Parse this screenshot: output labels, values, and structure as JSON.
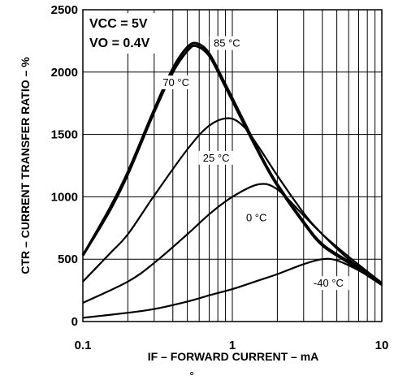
{
  "chart_data": {
    "type": "line",
    "x_scale": "log",
    "y_scale": "linear",
    "xlim": [
      0.1,
      10
    ],
    "ylim": [
      0,
      2500
    ],
    "grid": true,
    "xlabel": "IF – FORWARD CURRENT – mA",
    "ylabel": "CTR – CURRENT TRANSFER RATIO – %",
    "x_ticks": [
      "0.1",
      "1",
      "10"
    ],
    "y_ticks": [
      "0",
      "500",
      "1000",
      "1500",
      "2000",
      "2500"
    ],
    "conditions": [
      "VCC = 5V",
      "VO = 0.4V"
    ],
    "series": [
      {
        "name": "85 °C",
        "x": [
          0.1,
          0.15,
          0.2,
          0.3,
          0.4,
          0.5,
          0.58,
          0.7,
          0.9,
          1.2,
          1.6,
          2,
          3,
          4,
          6,
          10
        ],
        "values": [
          530,
          900,
          1200,
          1700,
          2030,
          2200,
          2230,
          2150,
          1900,
          1600,
          1300,
          1100,
          800,
          620,
          480,
          300
        ]
      },
      {
        "name": "70 °C",
        "x": [
          0.1,
          0.15,
          0.2,
          0.3,
          0.4,
          0.5,
          0.57,
          0.7,
          0.9,
          1.2,
          1.6,
          2,
          3,
          4,
          6,
          10
        ],
        "values": [
          530,
          880,
          1180,
          1680,
          2000,
          2170,
          2210,
          2130,
          1880,
          1580,
          1290,
          1090,
          790,
          610,
          470,
          295
        ]
      },
      {
        "name": "25 °C",
        "x": [
          0.1,
          0.15,
          0.2,
          0.3,
          0.5,
          0.7,
          0.95,
          1.2,
          1.5,
          2,
          3,
          4,
          6,
          10
        ],
        "values": [
          320,
          540,
          700,
          1010,
          1380,
          1570,
          1630,
          1560,
          1400,
          1170,
          870,
          700,
          500,
          310
        ]
      },
      {
        "name": "0 °C",
        "x": [
          0.1,
          0.2,
          0.3,
          0.5,
          0.7,
          1,
          1.5,
          2,
          3,
          4,
          6,
          10
        ],
        "values": [
          150,
          320,
          470,
          700,
          860,
          1000,
          1100,
          1060,
          850,
          700,
          520,
          310
        ]
      },
      {
        "name": "-40 °C",
        "x": [
          0.1,
          0.2,
          0.3,
          0.5,
          0.7,
          1,
          1.5,
          2,
          3,
          4,
          5,
          7,
          10
        ],
        "values": [
          30,
          70,
          100,
          160,
          210,
          260,
          330,
          380,
          460,
          500,
          490,
          410,
          300
        ]
      }
    ]
  }
}
